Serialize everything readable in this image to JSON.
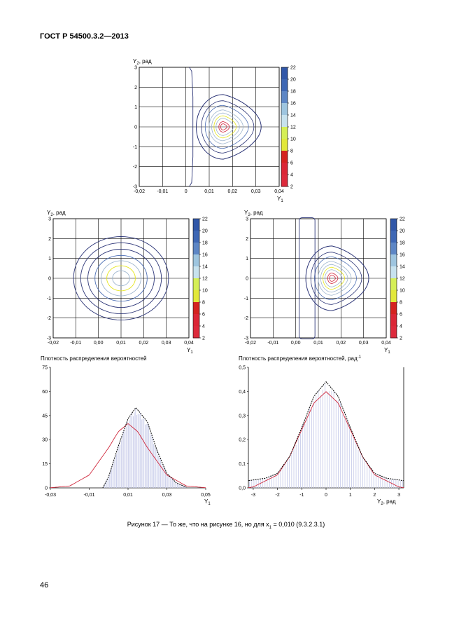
{
  "header": {
    "standard": "ГОСТ Р 54500.3.2—2013"
  },
  "page": {
    "number": "46"
  },
  "caption": {
    "prefix": "Рисунок 17",
    "text": "— То же, что на рисунке 16, но для x",
    "subscript": "1",
    "tail": "= 0,010 (9.3.2.3.1)"
  },
  "colors": {
    "contour_outer": "#2c3577",
    "contour_mid": "#4d6fb5",
    "contour_light": "#9fb6cf",
    "contour_yellow": "#e6e61e",
    "contour_red": "#d2233a",
    "hist_fill": "#c9cdea",
    "pdf_red": "#d02a3e",
    "grid": "#000000"
  },
  "contour_plots": [
    {
      "id": "top",
      "y_label": "Y",
      "y_sub": "2",
      "y_unit": ", рад",
      "x_label": "Y",
      "x_sub": "1",
      "x_ticks": [
        "-0,02",
        "-0,01",
        "0",
        "0,01",
        "0,02",
        "0,03",
        "0,04"
      ],
      "y_ticks": [
        "3",
        "2",
        "1",
        "0",
        "-1",
        "-2",
        "-3"
      ],
      "x_range": [
        -0.02,
        0.04
      ],
      "y_range": [
        -3,
        3
      ],
      "colorbar_ticks": [
        "22",
        "20",
        "18",
        "16",
        "14",
        "12",
        "10",
        "8",
        "6",
        "4",
        "2"
      ]
    },
    {
      "id": "left",
      "y_label": "Y",
      "y_sub": "2",
      "y_unit": ", рад",
      "x_label": "Y",
      "x_sub": "1",
      "x_ticks": [
        "-0,02",
        "-0,01",
        "0,00",
        "0,01",
        "0,02",
        "0,03",
        "0,04"
      ],
      "y_ticks": [
        "3",
        "2",
        "1",
        "0",
        "-1",
        "-2",
        "-3"
      ],
      "x_range": [
        -0.02,
        0.04
      ],
      "y_range": [
        -3,
        3
      ],
      "colorbar_ticks": [
        "22",
        "20",
        "18",
        "16",
        "14",
        "12",
        "10",
        "8",
        "6",
        "4",
        "2"
      ]
    },
    {
      "id": "right",
      "y_label": "Y",
      "y_sub": "2",
      "y_unit": ", рад",
      "x_label": "Y",
      "x_sub": "1",
      "x_ticks": [
        "-0,02",
        "-0,01",
        "0,00",
        "0,01",
        "0,02",
        "0,03",
        "0,04"
      ],
      "y_ticks": [
        "3",
        "2",
        "1",
        "0",
        "-1",
        "-2",
        "-3"
      ],
      "x_range": [
        -0.02,
        0.04
      ],
      "y_range": [
        -3,
        3
      ],
      "colorbar_ticks": [
        "22",
        "20",
        "18",
        "16",
        "14",
        "12",
        "10",
        "8",
        "6",
        "4",
        "2"
      ]
    }
  ],
  "density_plots": [
    {
      "id": "pdf-y1",
      "title": "Плотность распределения вероятностей",
      "title_sup": "",
      "x_label": "Y",
      "x_sub": "1",
      "x_unit": "",
      "x_ticks": [
        "-0,03",
        "-0,01",
        "0,01",
        "0,03",
        "0,05"
      ],
      "y_ticks": [
        "75",
        "60",
        "45",
        "30",
        "15",
        "0"
      ],
      "x_range": [
        -0.03,
        0.05
      ],
      "y_range": [
        0,
        75
      ]
    },
    {
      "id": "pdf-y2",
      "title": "Плотность распределения вероятностей, рад",
      "title_sup": "-1",
      "x_label": "Y",
      "x_sub": "2",
      "x_unit": ", рад",
      "x_ticks": [
        "-3",
        "-2",
        "-1",
        "0",
        "1",
        "2",
        "3"
      ],
      "y_ticks": [
        "0,5",
        "0,4",
        "0,3",
        "0,2",
        "0,1",
        "0,0"
      ],
      "x_range": [
        -3.2,
        3.2
      ],
      "y_range": [
        0,
        0.5
      ]
    }
  ],
  "chart_data": [
    {
      "type": "heatmap",
      "title": "",
      "xlabel": "Y1",
      "ylabel": "Y2, рад",
      "xlim": [
        -0.02,
        0.04
      ],
      "ylim": [
        -3,
        3
      ],
      "contour_levels": [
        2,
        4,
        6,
        8,
        10,
        12,
        14,
        16,
        18,
        20,
        22
      ],
      "peak": {
        "x": 0.016,
        "y": 0.0
      }
    },
    {
      "type": "heatmap",
      "title": "",
      "xlabel": "Y1",
      "ylabel": "Y2, рад",
      "xlim": [
        -0.02,
        0.04
      ],
      "ylim": [
        -3,
        3
      ],
      "contour_levels": [
        2,
        4,
        6,
        8,
        10,
        12,
        14,
        16,
        18,
        20,
        22
      ],
      "peak": {
        "x": 0.01,
        "y": 0.0
      }
    },
    {
      "type": "heatmap",
      "title": "",
      "xlabel": "Y1",
      "ylabel": "Y2, рад",
      "xlim": [
        -0.02,
        0.04
      ],
      "ylim": [
        -3,
        3
      ],
      "contour_levels": [
        2,
        4,
        6,
        8,
        10,
        12,
        14,
        16,
        18,
        20,
        22
      ],
      "peak": {
        "x": 0.016,
        "y": 0.0
      }
    },
    {
      "type": "line",
      "title": "Плотность распределения вероятностей",
      "xlabel": "Y1",
      "ylabel": "",
      "xlim": [
        -0.03,
        0.05
      ],
      "ylim": [
        0,
        75
      ],
      "series": [
        {
          "name": "",
          "style": "histogram",
          "x": [
            0.0,
            0.005,
            0.01,
            0.015,
            0.02,
            0.025,
            0.03,
            0.035
          ],
          "y": [
            3,
            22,
            42,
            49,
            40,
            22,
            8,
            2
          ]
        },
        {
          "name": "",
          "style": "dashed-black",
          "x": [
            -0.003,
            0.0,
            0.005,
            0.01,
            0.014,
            0.02,
            0.025,
            0.03,
            0.035,
            0.04
          ],
          "y": [
            0,
            7,
            26,
            43,
            50,
            41,
            23,
            9,
            3,
            0.5
          ]
        },
        {
          "name": "",
          "style": "red",
          "x": [
            -0.03,
            -0.02,
            -0.01,
            0.0,
            0.005,
            0.01,
            0.015,
            0.02,
            0.03,
            0.04,
            0.05
          ],
          "y": [
            0.1,
            1.2,
            8,
            25,
            35,
            40,
            35,
            25,
            8,
            1.2,
            0.1
          ]
        }
      ]
    },
    {
      "type": "line",
      "title": "Плотность распределения вероятностей, рад-1",
      "xlabel": "Y2, рад",
      "ylabel": "",
      "xlim": [
        -3.2,
        3.2
      ],
      "ylim": [
        0,
        0.5
      ],
      "series": [
        {
          "name": "",
          "style": "histogram",
          "x": [
            -3,
            -2,
            -1,
            -0.5,
            0,
            0.5,
            1,
            2,
            3
          ],
          "y": [
            0.03,
            0.06,
            0.27,
            0.38,
            0.43,
            0.38,
            0.27,
            0.06,
            0.03
          ]
        },
        {
          "name": "",
          "style": "dashed-black",
          "x": [
            -3.2,
            -2.5,
            -2,
            -1.5,
            -1,
            -0.5,
            0,
            0.5,
            1,
            1.5,
            2,
            2.5,
            3.2
          ],
          "y": [
            0.03,
            0.04,
            0.06,
            0.13,
            0.25,
            0.38,
            0.44,
            0.38,
            0.25,
            0.13,
            0.06,
            0.04,
            0.03
          ]
        },
        {
          "name": "",
          "style": "red",
          "x": [
            -3.2,
            -3,
            -2,
            -1.5,
            -1,
            -0.5,
            0,
            0.5,
            1,
            1.5,
            2,
            3,
            3.2
          ],
          "y": [
            0.001,
            0.004,
            0.054,
            0.13,
            0.242,
            0.352,
            0.399,
            0.352,
            0.242,
            0.13,
            0.054,
            0.004,
            0.001
          ]
        }
      ]
    }
  ]
}
